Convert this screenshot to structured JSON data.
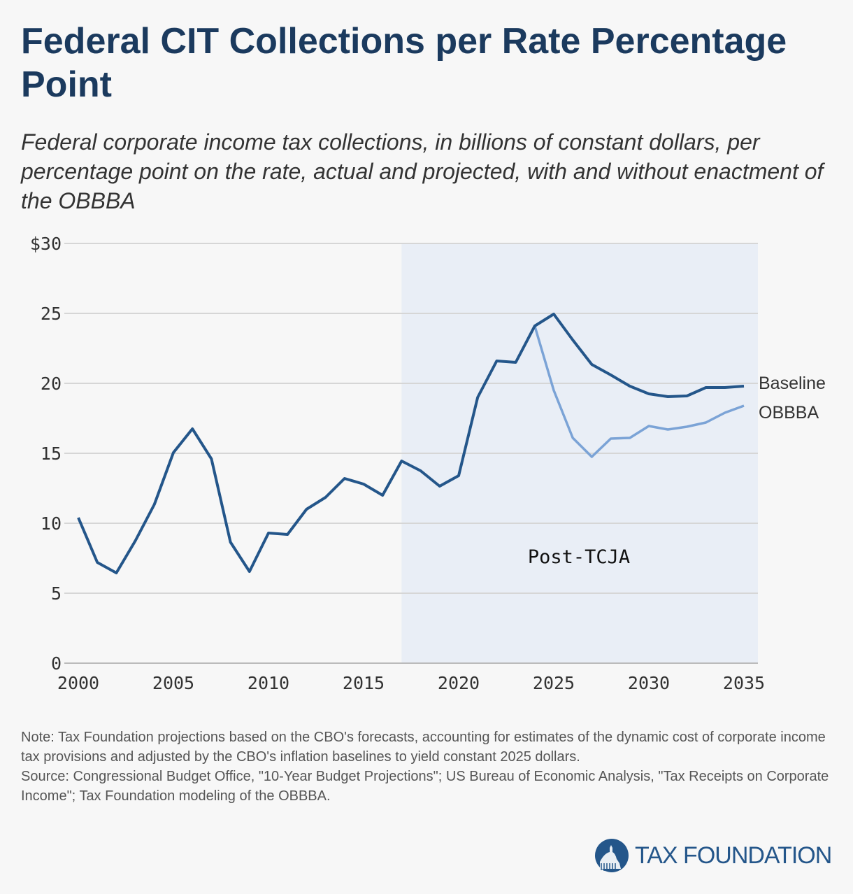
{
  "title": "Federal CIT Collections per Rate Percentage Point",
  "subtitle": "Federal corporate income tax collections, in billions of constant dollars, per percentage point on the rate, actual and projected, with and without enactment of the OBBBA",
  "note": "Note: Tax Foundation projections based on the CBO's forecasts, accounting for estimates of the dynamic cost of corporate income tax provisions and adjusted by the CBO's inflation baselines to yield constant 2025 dollars.",
  "source": "Source: Congressional Budget Office, \"10-Year Budget Projections\"; US Bureau of Economic Analysis, \"Tax Receipts on Corporate Income\"; Tax Foundation modeling of the OBBBA.",
  "logo": "TAX FOUNDATION",
  "colors": {
    "baseline": "#24568a",
    "obbba": "#7ba3d6",
    "shading": "#e9eef6",
    "title": "#1b3a5e"
  },
  "chart_data": {
    "type": "line",
    "xlim": [
      2000,
      2035
    ],
    "ylim": [
      0,
      30
    ],
    "grid": true,
    "x_ticks": [
      "2000",
      "2005",
      "2010",
      "2015",
      "2020",
      "2025",
      "2030",
      "2035"
    ],
    "y_ticks": [
      "0",
      "5",
      "10",
      "15",
      "20",
      "25",
      "$30"
    ],
    "y_tick_values": [
      0,
      5,
      10,
      15,
      20,
      25,
      30
    ],
    "x_tick_values": [
      2000,
      2005,
      2010,
      2015,
      2020,
      2025,
      2030,
      2035
    ],
    "shaded_region": {
      "from": 2017,
      "to": 2035,
      "label": "Post-TCJA"
    },
    "series": [
      {
        "name": "Baseline",
        "x": [
          2000,
          2001,
          2002,
          2003,
          2004,
          2005,
          2006,
          2007,
          2008,
          2009,
          2010,
          2011,
          2012,
          2013,
          2014,
          2015,
          2016,
          2017,
          2018,
          2019,
          2020,
          2021,
          2022,
          2023,
          2024,
          2025,
          2026,
          2027,
          2028,
          2029,
          2030,
          2031,
          2032,
          2033,
          2034,
          2035
        ],
        "values": [
          10.4,
          7.2,
          6.45,
          8.75,
          11.35,
          15.05,
          16.75,
          14.6,
          8.65,
          6.55,
          9.3,
          9.2,
          11.0,
          11.85,
          13.2,
          12.8,
          12.0,
          14.45,
          13.75,
          12.65,
          13.4,
          19.0,
          21.6,
          21.5,
          24.1,
          24.95,
          23.1,
          21.35,
          20.6,
          19.8,
          19.25,
          19.05,
          19.1,
          19.7,
          19.7,
          19.8
        ]
      },
      {
        "name": "OBBBA",
        "x": [
          2024,
          2025,
          2026,
          2027,
          2028,
          2029,
          2030,
          2031,
          2032,
          2033,
          2034,
          2035
        ],
        "values": [
          24.1,
          19.5,
          16.1,
          14.75,
          16.05,
          16.1,
          16.95,
          16.7,
          16.9,
          17.2,
          17.9,
          18.4
        ]
      }
    ]
  }
}
